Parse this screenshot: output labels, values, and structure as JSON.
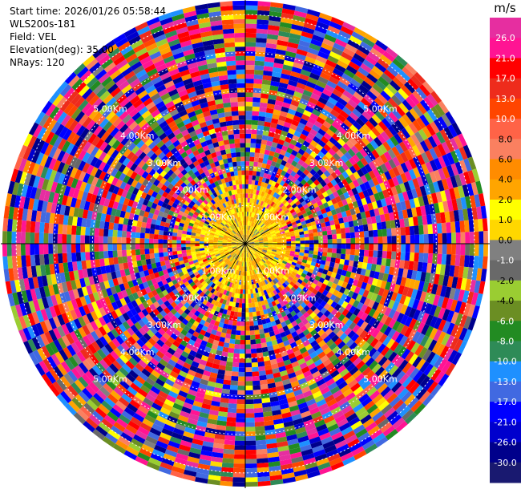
{
  "header": {
    "start_time": "Start time: 2026/01/26 05:58:44",
    "site": "WLS200s-181",
    "field": "Field: VEL",
    "elevation": "Elevation(deg): 35.00",
    "nrays": "NRays: 120"
  },
  "chart_data": {
    "type": "heatmap",
    "projection": "polar-ppi",
    "field": "VEL",
    "elevation_deg": 35.0,
    "nrays": 120,
    "azimuth_step_deg": 3,
    "max_range_km": 6.4,
    "range_rings_km": [
      1,
      2,
      3,
      4,
      5,
      6
    ],
    "ring_labels": {
      "1": "1.00Km",
      "2": "2.00Km",
      "3": "3.00Km",
      "4": "4.00Km",
      "5": "5.00Km"
    },
    "ring_label_bearings_deg": [
      -45,
      45,
      135,
      225
    ],
    "near_range_dominant_velocity_ms": [
      0.0,
      4.0
    ],
    "far_range_pattern": "noise",
    "colorbar": {
      "unit": "m/s",
      "boundaries": [
        30.0,
        26.0,
        21.0,
        17.0,
        13.0,
        10.0,
        8.0,
        6.0,
        4.0,
        2.0,
        1.0,
        0.0,
        -1.0,
        -2.0,
        -4.0,
        -6.0,
        -8.0,
        -10.0,
        -13.0,
        -17.0,
        -21.0,
        -26.0,
        -30.0
      ],
      "ticks": [
        "26.0",
        "21.0",
        "17.0",
        "13.0",
        "10.0",
        "8.0",
        "6.0",
        "4.0",
        "2.0",
        "1.0",
        "0.0",
        "-1.0",
        "-2.0",
        "-4.0",
        "-6.0",
        "-8.0",
        "-10.0",
        "-13.0",
        "-17.0",
        "-21.0",
        "-26.0",
        "-30.0"
      ],
      "colors": [
        "#e62ea0",
        "#ff1493",
        "#ff0000",
        "#ee2c1c",
        "#ff4500",
        "#ff6347",
        "#fa8060",
        "#ff8c00",
        "#ffa500",
        "#ffff00",
        "#ffd700",
        "#808080",
        "#696969",
        "#9acd32",
        "#6b8e23",
        "#228b22",
        "#2e8b57",
        "#1e90ff",
        "#4169e1",
        "#0000ff",
        "#0000cd",
        "#00008b",
        "#191970"
      ]
    }
  }
}
